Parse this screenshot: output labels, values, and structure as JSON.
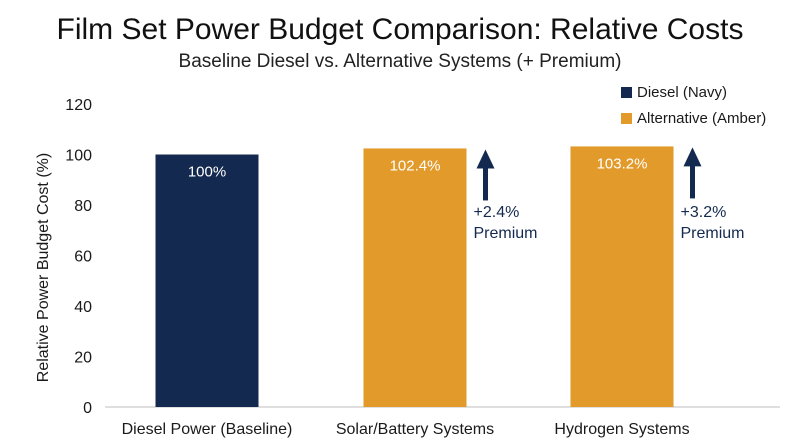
{
  "chart_data": {
    "type": "bar",
    "title": "Film Set Power Budget Comparison: Relative Costs",
    "subtitle": "Baseline Diesel vs. Alternative Systems (+ Premium)",
    "xlabel": "",
    "ylabel": "Relative Power Budget Cost (%)",
    "ylim": [
      0,
      120
    ],
    "yticks": [
      0,
      20,
      40,
      60,
      80,
      100,
      120
    ],
    "grid": false,
    "legend_position": "top-right",
    "legend": [
      {
        "label": "Diesel (Navy)",
        "color": "#14294f"
      },
      {
        "label": "Alternative (Amber)",
        "color": "#e29a2b"
      }
    ],
    "categories": [
      "Diesel Power (Baseline)",
      "Solar/Battery Systems",
      "Hydrogen Systems"
    ],
    "values": [
      100,
      102.4,
      103.2
    ],
    "bar_colors": [
      "#14294f",
      "#e29a2b",
      "#e29a2b"
    ],
    "data_labels": [
      "100%",
      "102.4%",
      "103.2%"
    ],
    "annotations": [
      {
        "category": "Solar/Battery Systems",
        "line1": "+2.4%",
        "line2": "Premium",
        "icon": "up-arrow-icon"
      },
      {
        "category": "Hydrogen Systems",
        "line1": "+3.2%",
        "line2": "Premium",
        "icon": "up-arrow-icon"
      }
    ],
    "annotation_color": "#14294f"
  }
}
